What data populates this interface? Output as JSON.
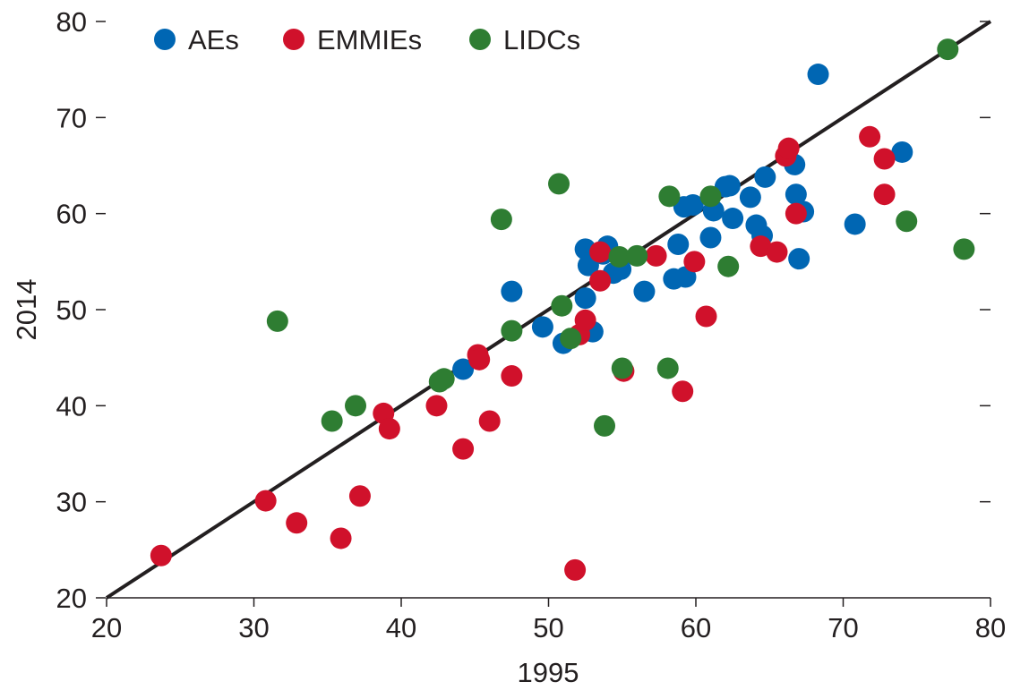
{
  "chart_data": {
    "type": "scatter",
    "title": "",
    "xlabel": "1995",
    "ylabel": "2014",
    "xlim": [
      20,
      80
    ],
    "ylim": [
      20,
      80
    ],
    "xticks": [
      20,
      30,
      40,
      50,
      60,
      70,
      80
    ],
    "yticks": [
      20,
      30,
      40,
      50,
      60,
      70,
      80
    ],
    "grid": false,
    "legend": {
      "placement": "top-left",
      "orientation": "horizontal"
    },
    "reference_line": {
      "from": [
        20,
        20
      ],
      "to": [
        80,
        80
      ],
      "color": "#231f20"
    },
    "series": [
      {
        "name": "AEs",
        "color": "#0066b3",
        "points": [
          [
            44.2,
            43.8
          ],
          [
            47.5,
            51.9
          ],
          [
            49.6,
            48.2
          ],
          [
            51.0,
            46.5
          ],
          [
            52.5,
            51.2
          ],
          [
            52.5,
            56.3
          ],
          [
            52.7,
            54.6
          ],
          [
            53.0,
            47.7
          ],
          [
            53.7,
            55.8
          ],
          [
            54.0,
            56.6
          ],
          [
            54.4,
            53.8
          ],
          [
            54.9,
            54.2
          ],
          [
            56.5,
            51.9
          ],
          [
            58.5,
            53.2
          ],
          [
            58.8,
            56.8
          ],
          [
            59.2,
            60.7
          ],
          [
            59.3,
            53.4
          ],
          [
            59.8,
            60.9
          ],
          [
            61.0,
            57.5
          ],
          [
            61.2,
            60.3
          ],
          [
            62.0,
            62.8
          ],
          [
            62.3,
            62.9
          ],
          [
            62.5,
            59.5
          ],
          [
            63.7,
            61.7
          ],
          [
            64.1,
            58.8
          ],
          [
            64.5,
            57.7
          ],
          [
            64.7,
            63.8
          ],
          [
            66.7,
            65.1
          ],
          [
            66.8,
            62.0
          ],
          [
            67.0,
            55.3
          ],
          [
            67.3,
            60.2
          ],
          [
            68.3,
            74.5
          ],
          [
            70.8,
            58.9
          ],
          [
            74.0,
            66.4
          ]
        ]
      },
      {
        "name": "EMMIEs",
        "color": "#d0112b",
        "points": [
          [
            23.7,
            24.4
          ],
          [
            30.8,
            30.1
          ],
          [
            32.9,
            27.8
          ],
          [
            35.9,
            26.2
          ],
          [
            37.2,
            30.6
          ],
          [
            38.8,
            39.2
          ],
          [
            39.2,
            37.6
          ],
          [
            42.4,
            40.0
          ],
          [
            44.2,
            35.5
          ],
          [
            45.2,
            45.3
          ],
          [
            45.3,
            44.8
          ],
          [
            46.0,
            38.4
          ],
          [
            47.5,
            43.1
          ],
          [
            51.8,
            22.9
          ],
          [
            52.1,
            47.4
          ],
          [
            52.5,
            48.9
          ],
          [
            53.5,
            56.0
          ],
          [
            53.5,
            53.0
          ],
          [
            55.1,
            43.6
          ],
          [
            57.3,
            55.6
          ],
          [
            59.1,
            41.5
          ],
          [
            59.9,
            55.0
          ],
          [
            60.7,
            49.3
          ],
          [
            64.4,
            56.6
          ],
          [
            65.5,
            56.0
          ],
          [
            66.1,
            66.0
          ],
          [
            66.3,
            66.8
          ],
          [
            66.8,
            60.0
          ],
          [
            71.8,
            68.0
          ],
          [
            72.8,
            65.7
          ],
          [
            72.8,
            62.0
          ]
        ]
      },
      {
        "name": "LIDCs",
        "color": "#2e7d32",
        "points": [
          [
            31.6,
            48.8
          ],
          [
            35.3,
            38.4
          ],
          [
            36.9,
            40.0
          ],
          [
            42.6,
            42.5
          ],
          [
            42.9,
            42.8
          ],
          [
            46.8,
            59.4
          ],
          [
            47.5,
            47.8
          ],
          [
            50.7,
            63.1
          ],
          [
            50.9,
            50.4
          ],
          [
            51.5,
            47.0
          ],
          [
            53.8,
            37.9
          ],
          [
            54.8,
            55.5
          ],
          [
            55.0,
            43.9
          ],
          [
            56.0,
            55.6
          ],
          [
            58.1,
            43.9
          ],
          [
            58.2,
            61.8
          ],
          [
            61.0,
            61.8
          ],
          [
            62.2,
            54.5
          ],
          [
            74.3,
            59.2
          ],
          [
            77.1,
            77.1
          ],
          [
            78.2,
            56.3
          ]
        ]
      }
    ]
  }
}
